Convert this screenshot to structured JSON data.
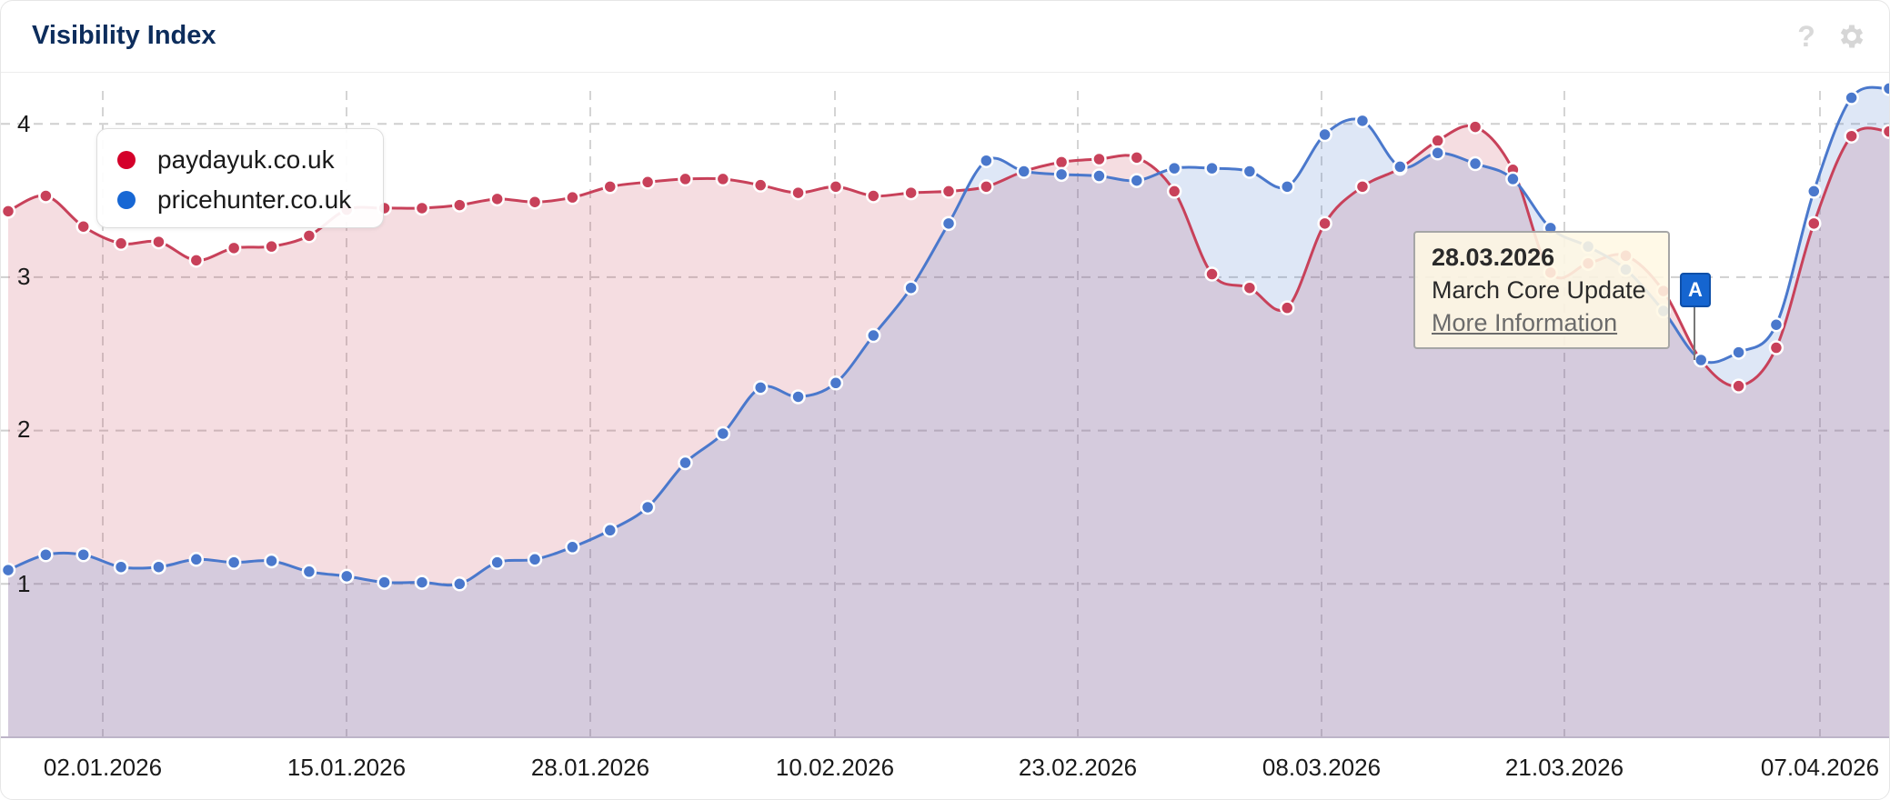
{
  "header": {
    "title": "Visibility Index",
    "help_icon": "?",
    "settings_icon": "gear"
  },
  "legend": {
    "items": [
      {
        "label": "paydayuk.co.uk",
        "color": "#d4002a"
      },
      {
        "label": "pricehunter.co.uk",
        "color": "#1767d4"
      }
    ]
  },
  "tooltip": {
    "date": "28.03.2026",
    "event": "March Core Update",
    "link": "More Information"
  },
  "event_flag": {
    "label": "A",
    "color": "#1565d0"
  },
  "axes": {
    "y_ticks": [
      "1",
      "2",
      "3",
      "4"
    ],
    "x_ticks": [
      "02.01.2026",
      "15.01.2026",
      "28.01.2026",
      "10.02.2026",
      "23.02.2026",
      "08.03.2026",
      "21.03.2026",
      "07.04.2026"
    ]
  },
  "chart_data": {
    "type": "area",
    "title": "Visibility Index",
    "xlabel": "",
    "ylabel": "",
    "ylim": [
      0,
      4.3
    ],
    "grid": true,
    "legend_position": "top-left",
    "x_ticks": [
      "02.01.2026",
      "15.01.2026",
      "28.01.2026",
      "10.02.2026",
      "23.02.2026",
      "08.03.2026",
      "21.03.2026",
      "07.04.2026"
    ],
    "point_spacing_days": 2,
    "series": [
      {
        "name": "paydayuk.co.uk",
        "color": "#c8415a",
        "values": [
          3.43,
          3.53,
          3.33,
          3.22,
          3.23,
          3.11,
          3.19,
          3.2,
          3.27,
          3.44,
          3.45,
          3.45,
          3.47,
          3.51,
          3.49,
          3.52,
          3.59,
          3.62,
          3.64,
          3.64,
          3.6,
          3.55,
          3.59,
          3.53,
          3.55,
          3.56,
          3.59,
          3.69,
          3.75,
          3.77,
          3.78,
          3.56,
          3.02,
          2.93,
          2.8,
          3.35,
          3.59,
          3.71,
          3.89,
          3.98,
          3.7,
          3.03,
          3.09,
          3.14,
          2.91,
          2.46,
          2.29,
          2.54,
          3.35,
          3.92,
          3.95
        ]
      },
      {
        "name": "pricehunter.co.uk",
        "color": "#4a78cc",
        "values": [
          1.09,
          1.19,
          1.19,
          1.11,
          1.11,
          1.16,
          1.14,
          1.15,
          1.08,
          1.05,
          1.01,
          1.01,
          1.0,
          1.14,
          1.16,
          1.24,
          1.35,
          1.5,
          1.79,
          1.98,
          2.28,
          2.22,
          2.31,
          2.62,
          2.93,
          3.35,
          3.76,
          3.69,
          3.67,
          3.66,
          3.63,
          3.71,
          3.71,
          3.69,
          3.59,
          3.93,
          4.02,
          3.72,
          3.81,
          3.74,
          3.64,
          3.32,
          3.2,
          3.05,
          2.78,
          2.46,
          2.51,
          2.69,
          3.56,
          4.17,
          4.23
        ]
      }
    ],
    "annotations": [
      {
        "date": "28.03.2026",
        "label": "March Core Update",
        "flag": "A"
      }
    ]
  }
}
